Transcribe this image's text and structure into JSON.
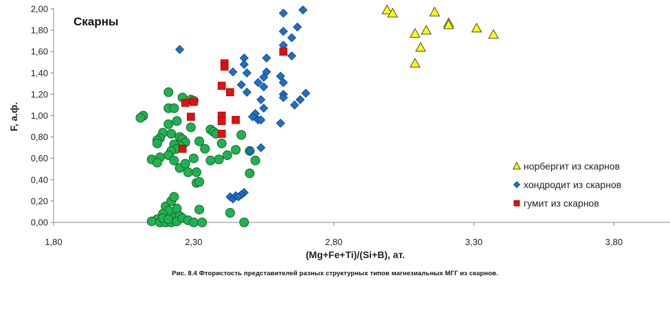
{
  "chart_data": {
    "type": "scatter",
    "title": "Скарны",
    "xlabel": "(Mg+Fe+Ti)/(Si+B), ат.",
    "ylabel": "F, а.ф.",
    "xlim": [
      1.8,
      4.0
    ],
    "ylim": [
      0,
      2.0
    ],
    "x_ticks": [
      "1,80",
      "2,30",
      "2,80",
      "3,30",
      "3,80"
    ],
    "y_ticks": [
      "0,00",
      "0,20",
      "0,40",
      "0,60",
      "0,80",
      "1,00",
      "1,20",
      "1,40",
      "1,60",
      "1,80",
      "2,00"
    ],
    "grid": false,
    "legend_position": "bottom-right",
    "series": [
      {
        "name": "норбергит из скарнов",
        "marker": "triangle",
        "color": "#ffff00",
        "points": [
          [
            2.99,
            1.99
          ],
          [
            3.01,
            1.96
          ],
          [
            3.16,
            1.97
          ],
          [
            3.09,
            1.77
          ],
          [
            3.13,
            1.8
          ],
          [
            3.11,
            1.64
          ],
          [
            3.09,
            1.49
          ],
          [
            3.21,
            1.87
          ],
          [
            3.21,
            1.85
          ],
          [
            3.31,
            1.82
          ],
          [
            3.37,
            1.76
          ]
        ]
      },
      {
        "name": "хондродит из скарнов",
        "marker": "diamond",
        "color": "#1f6fc8",
        "points": [
          [
            2.25,
            1.62
          ],
          [
            2.62,
            1.96
          ],
          [
            2.69,
            1.99
          ],
          [
            2.62,
            1.79
          ],
          [
            2.67,
            1.83
          ],
          [
            2.65,
            1.73
          ],
          [
            2.62,
            1.66
          ],
          [
            2.65,
            1.56
          ],
          [
            2.56,
            1.54
          ],
          [
            2.48,
            1.54
          ],
          [
            2.48,
            1.48
          ],
          [
            2.44,
            1.41
          ],
          [
            2.49,
            1.4
          ],
          [
            2.56,
            1.41
          ],
          [
            2.55,
            1.36
          ],
          [
            2.61,
            1.37
          ],
          [
            2.62,
            1.31
          ],
          [
            2.53,
            1.31
          ],
          [
            2.47,
            1.29
          ],
          [
            2.55,
            1.27
          ],
          [
            2.49,
            1.22
          ],
          [
            2.62,
            1.2
          ],
          [
            2.62,
            1.17
          ],
          [
            2.7,
            1.21
          ],
          [
            2.68,
            1.15
          ],
          [
            2.66,
            1.1
          ],
          [
            2.54,
            1.15
          ],
          [
            2.55,
            1.07
          ],
          [
            2.52,
            1.02
          ],
          [
            2.51,
            0.99
          ],
          [
            2.53,
            0.96
          ],
          [
            2.54,
            0.96
          ],
          [
            2.61,
            0.93
          ],
          [
            2.54,
            0.7
          ],
          [
            2.5,
            0.67
          ],
          [
            2.48,
            0.28
          ],
          [
            2.47,
            0.26
          ],
          [
            2.43,
            0.24
          ],
          [
            2.44,
            0.22
          ],
          [
            2.45,
            0.25
          ],
          [
            2.46,
            0.24
          ]
        ]
      },
      {
        "name": "гумит из скарнов",
        "marker": "square",
        "color": "#e01010",
        "points": [
          [
            2.41,
            1.49
          ],
          [
            2.41,
            1.46
          ],
          [
            2.4,
            1.28
          ],
          [
            2.43,
            1.22
          ],
          [
            2.27,
            1.12
          ],
          [
            2.3,
            1.13
          ],
          [
            2.29,
            0.99
          ],
          [
            2.4,
            1.0
          ],
          [
            2.4,
            0.95
          ],
          [
            2.45,
            0.96
          ],
          [
            2.4,
            0.83
          ],
          [
            2.26,
            0.69
          ],
          [
            2.62,
            1.6
          ]
        ]
      },
      {
        "name": "",
        "marker": "circle",
        "color": "#1db352",
        "points": [
          [
            2.12,
            1.0
          ],
          [
            2.11,
            0.98
          ],
          [
            2.21,
            1.22
          ],
          [
            2.21,
            1.07
          ],
          [
            2.23,
            1.07
          ],
          [
            2.26,
            1.17
          ],
          [
            2.29,
            1.15
          ],
          [
            2.3,
            1.14
          ],
          [
            2.24,
            0.95
          ],
          [
            2.21,
            0.92
          ],
          [
            2.19,
            0.84
          ],
          [
            2.18,
            0.79
          ],
          [
            2.17,
            0.77
          ],
          [
            2.17,
            0.74
          ],
          [
            2.22,
            0.83
          ],
          [
            2.25,
            0.8
          ],
          [
            2.26,
            0.78
          ],
          [
            2.27,
            0.75
          ],
          [
            2.25,
            0.72
          ],
          [
            2.23,
            0.73
          ],
          [
            2.24,
            0.69
          ],
          [
            2.22,
            0.67
          ],
          [
            2.21,
            0.63
          ],
          [
            2.18,
            0.61
          ],
          [
            2.15,
            0.59
          ],
          [
            2.17,
            0.56
          ],
          [
            2.23,
            0.58
          ],
          [
            2.25,
            0.51
          ],
          [
            2.27,
            0.55
          ],
          [
            2.28,
            0.47
          ],
          [
            2.3,
            0.6
          ],
          [
            2.29,
            0.89
          ],
          [
            2.32,
            0.76
          ],
          [
            2.34,
            0.69
          ],
          [
            2.36,
            0.87
          ],
          [
            2.37,
            0.85
          ],
          [
            2.38,
            0.83
          ],
          [
            2.4,
            0.74
          ],
          [
            2.42,
            0.63
          ],
          [
            2.39,
            0.59
          ],
          [
            2.45,
            0.68
          ],
          [
            2.47,
            0.82
          ],
          [
            2.5,
            0.67
          ],
          [
            2.52,
            0.58
          ],
          [
            2.5,
            0.46
          ],
          [
            2.36,
            0.58
          ],
          [
            2.31,
            0.37
          ],
          [
            2.32,
            0.38
          ],
          [
            2.31,
            0.47
          ],
          [
            2.32,
            0.12
          ],
          [
            2.43,
            0.09
          ],
          [
            2.48,
            0.0
          ],
          [
            2.2,
            0.15
          ],
          [
            2.22,
            0.2
          ],
          [
            2.23,
            0.24
          ],
          [
            2.24,
            0.13
          ],
          [
            2.21,
            0.11
          ],
          [
            2.19,
            0.08
          ],
          [
            2.23,
            0.05
          ],
          [
            2.25,
            0.06
          ],
          [
            2.17,
            0.03
          ],
          [
            2.15,
            0.01
          ],
          [
            2.18,
            0.0
          ],
          [
            2.2,
            0.0
          ],
          [
            2.22,
            0.0
          ],
          [
            2.24,
            0.01
          ],
          [
            2.26,
            0.04
          ],
          [
            2.28,
            0.02
          ],
          [
            2.3,
            0.0
          ],
          [
            2.33,
            0.0
          ],
          [
            2.19,
            0.04
          ],
          [
            2.21,
            0.03
          ]
        ]
      }
    ]
  },
  "caption": "Рис. 8.4 Фтористость представителей разных структурных типов магнезиальных МГГ из скарнов."
}
